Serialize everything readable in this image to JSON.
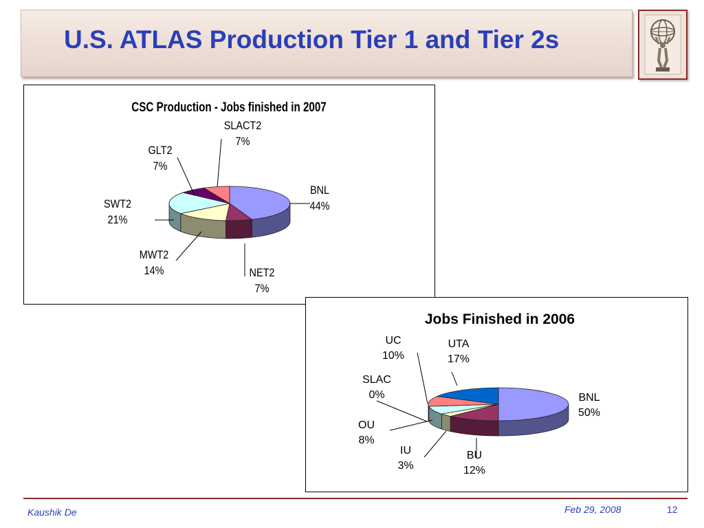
{
  "slide": {
    "title": "U.S. ATLAS Production Tier 1 and Tier 2s",
    "footer_author": "Kaushik De",
    "footer_date": "Feb 29, 2008",
    "page_number": "12",
    "title_color": "#2a3fb8",
    "accent_color": "#8b2a2a"
  },
  "chart_data": [
    {
      "type": "pie",
      "title": "CSC Production - Jobs finished in 2007",
      "slices": [
        {
          "label": "BNL",
          "value": 44,
          "display": "44%",
          "color": "#9999ff"
        },
        {
          "label": "NET2",
          "value": 7,
          "display": "7%",
          "color": "#993366"
        },
        {
          "label": "MWT2",
          "value": 14,
          "display": "14%",
          "color": "#ffffcc"
        },
        {
          "label": "SWT2",
          "value": 21,
          "display": "21%",
          "color": "#ccffff"
        },
        {
          "label": "GLT2",
          "value": 7,
          "display": "7%",
          "color": "#660066"
        },
        {
          "label": "SLACT2",
          "value": 7,
          "display": "7%",
          "color": "#ff8080"
        }
      ],
      "legend": "none"
    },
    {
      "type": "pie",
      "title": "Jobs Finished in 2006",
      "slices": [
        {
          "label": "BNL",
          "value": 50,
          "display": "50%",
          "color": "#9999ff"
        },
        {
          "label": "BU",
          "value": 12,
          "display": "12%",
          "color": "#993366"
        },
        {
          "label": "IU",
          "value": 3,
          "display": "3%",
          "color": "#ffffcc"
        },
        {
          "label": "OU",
          "value": 8,
          "display": "8%",
          "color": "#ccffff"
        },
        {
          "label": "SLAC",
          "value": 0,
          "display": "0%",
          "color": "#660066"
        },
        {
          "label": "UC",
          "value": 10,
          "display": "10%",
          "color": "#ff8080"
        },
        {
          "label": "UTA",
          "value": 17,
          "display": "17%",
          "color": "#0066cc"
        }
      ],
      "legend": "none"
    }
  ]
}
